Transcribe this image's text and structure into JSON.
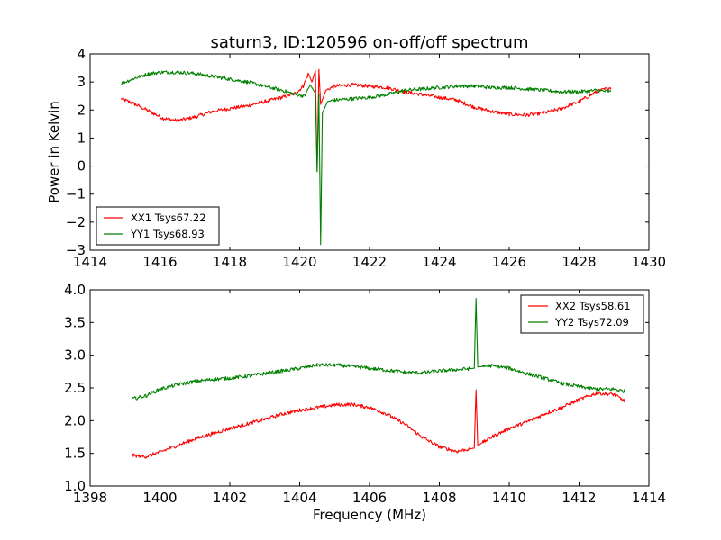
{
  "figure": {
    "title": "saturn3, ID:120596 on-off/off spectrum",
    "ylabel": "Power in Kelvin",
    "xlabel": "Frequency (MHz)"
  },
  "chart_data": [
    {
      "type": "line",
      "title": "saturn3, ID:120596 on-off/off spectrum",
      "xlabel": "",
      "ylabel": "Power in Kelvin",
      "xlim": [
        1414,
        1430
      ],
      "ylim": [
        -3,
        4
      ],
      "xticks": [
        "1414",
        "1416",
        "1418",
        "1420",
        "1422",
        "1424",
        "1426",
        "1428",
        "1430"
      ],
      "yticks": [
        "4",
        "3",
        "2",
        "1",
        "0",
        "−1",
        "−2",
        "−3"
      ],
      "legend_position": "lower-left",
      "grid": false,
      "series": [
        {
          "name": "XX1 Tsys67.22",
          "color": "#ff0000",
          "points": [
            [
              1414.9,
              2.4
            ],
            [
              1415.3,
              2.2
            ],
            [
              1415.7,
              1.95
            ],
            [
              1416.1,
              1.7
            ],
            [
              1416.5,
              1.62
            ],
            [
              1417.0,
              1.75
            ],
            [
              1417.5,
              1.95
            ],
            [
              1418.0,
              2.05
            ],
            [
              1418.5,
              2.15
            ],
            [
              1419.0,
              2.3
            ],
            [
              1419.5,
              2.45
            ],
            [
              1419.9,
              2.6
            ],
            [
              1420.1,
              2.85
            ],
            [
              1420.25,
              3.3
            ],
            [
              1420.35,
              3.0
            ],
            [
              1420.45,
              3.4
            ],
            [
              1420.5,
              -0.2
            ],
            [
              1420.55,
              3.45
            ],
            [
              1420.6,
              2.2
            ],
            [
              1420.75,
              2.7
            ],
            [
              1421.0,
              2.85
            ],
            [
              1421.5,
              2.9
            ],
            [
              1422.0,
              2.85
            ],
            [
              1422.5,
              2.8
            ],
            [
              1423.0,
              2.65
            ],
            [
              1423.5,
              2.55
            ],
            [
              1424.0,
              2.45
            ],
            [
              1424.5,
              2.35
            ],
            [
              1425.0,
              2.1
            ],
            [
              1425.5,
              1.95
            ],
            [
              1426.0,
              1.85
            ],
            [
              1426.5,
              1.82
            ],
            [
              1427.0,
              1.9
            ],
            [
              1427.5,
              2.05
            ],
            [
              1428.0,
              2.3
            ],
            [
              1428.5,
              2.65
            ],
            [
              1428.9,
              2.8
            ]
          ]
        },
        {
          "name": "YY1 Tsys68.93",
          "color": "#008000",
          "points": [
            [
              1414.9,
              2.95
            ],
            [
              1415.3,
              3.15
            ],
            [
              1415.7,
              3.3
            ],
            [
              1416.1,
              3.35
            ],
            [
              1416.5,
              3.35
            ],
            [
              1417.0,
              3.3
            ],
            [
              1417.5,
              3.2
            ],
            [
              1418.0,
              3.1
            ],
            [
              1418.5,
              3.0
            ],
            [
              1419.0,
              2.85
            ],
            [
              1419.5,
              2.7
            ],
            [
              1419.9,
              2.55
            ],
            [
              1420.15,
              2.5
            ],
            [
              1420.3,
              2.9
            ],
            [
              1420.45,
              2.6
            ],
            [
              1420.5,
              -0.2
            ],
            [
              1420.55,
              2.55
            ],
            [
              1420.6,
              -2.8
            ],
            [
              1420.65,
              1.9
            ],
            [
              1420.8,
              2.3
            ],
            [
              1421.0,
              2.35
            ],
            [
              1421.5,
              2.4
            ],
            [
              1422.0,
              2.45
            ],
            [
              1422.5,
              2.55
            ],
            [
              1423.0,
              2.7
            ],
            [
              1423.5,
              2.75
            ],
            [
              1424.0,
              2.8
            ],
            [
              1424.5,
              2.85
            ],
            [
              1425.0,
              2.85
            ],
            [
              1425.5,
              2.8
            ],
            [
              1426.0,
              2.8
            ],
            [
              1426.5,
              2.75
            ],
            [
              1427.0,
              2.7
            ],
            [
              1427.5,
              2.65
            ],
            [
              1428.0,
              2.65
            ],
            [
              1428.5,
              2.7
            ],
            [
              1428.9,
              2.65
            ]
          ]
        }
      ]
    },
    {
      "type": "line",
      "title": "",
      "xlabel": "Frequency (MHz)",
      "ylabel": "",
      "xlim": [
        1398,
        1414
      ],
      "ylim": [
        1.0,
        4.0
      ],
      "xticks": [
        "1398",
        "1400",
        "1402",
        "1404",
        "1406",
        "1408",
        "1410",
        "1412",
        "1414"
      ],
      "yticks": [
        "4.0",
        "3.5",
        "3.0",
        "2.5",
        "2.0",
        "1.5",
        "1.0"
      ],
      "legend_position": "upper-right",
      "grid": false,
      "series": [
        {
          "name": "XX2 Tsys58.61",
          "color": "#ff0000",
          "points": [
            [
              1399.2,
              1.47
            ],
            [
              1399.6,
              1.45
            ],
            [
              1400.0,
              1.52
            ],
            [
              1400.5,
              1.62
            ],
            [
              1401.0,
              1.72
            ],
            [
              1401.5,
              1.8
            ],
            [
              1402.0,
              1.88
            ],
            [
              1402.5,
              1.95
            ],
            [
              1403.0,
              2.02
            ],
            [
              1403.5,
              2.1
            ],
            [
              1404.0,
              2.16
            ],
            [
              1404.5,
              2.2
            ],
            [
              1405.0,
              2.24
            ],
            [
              1405.5,
              2.25
            ],
            [
              1406.0,
              2.2
            ],
            [
              1406.5,
              2.1
            ],
            [
              1407.0,
              1.95
            ],
            [
              1407.5,
              1.75
            ],
            [
              1408.0,
              1.6
            ],
            [
              1408.5,
              1.53
            ],
            [
              1409.0,
              1.58
            ],
            [
              1409.05,
              2.47
            ],
            [
              1409.1,
              1.62
            ],
            [
              1409.5,
              1.75
            ],
            [
              1410.0,
              1.88
            ],
            [
              1410.5,
              1.98
            ],
            [
              1411.0,
              2.1
            ],
            [
              1411.5,
              2.2
            ],
            [
              1412.0,
              2.32
            ],
            [
              1412.5,
              2.42
            ],
            [
              1413.0,
              2.4
            ],
            [
              1413.3,
              2.3
            ]
          ]
        },
        {
          "name": "YY2 Tsys72.09",
          "color": "#008000",
          "points": [
            [
              1399.2,
              2.33
            ],
            [
              1399.6,
              2.38
            ],
            [
              1400.0,
              2.48
            ],
            [
              1400.5,
              2.55
            ],
            [
              1401.0,
              2.6
            ],
            [
              1401.5,
              2.63
            ],
            [
              1402.0,
              2.65
            ],
            [
              1402.5,
              2.68
            ],
            [
              1403.0,
              2.72
            ],
            [
              1403.5,
              2.76
            ],
            [
              1404.0,
              2.8
            ],
            [
              1404.5,
              2.85
            ],
            [
              1405.0,
              2.85
            ],
            [
              1405.5,
              2.83
            ],
            [
              1406.0,
              2.8
            ],
            [
              1406.5,
              2.77
            ],
            [
              1407.0,
              2.74
            ],
            [
              1407.5,
              2.73
            ],
            [
              1408.0,
              2.76
            ],
            [
              1408.5,
              2.78
            ],
            [
              1409.0,
              2.8
            ],
            [
              1409.05,
              3.87
            ],
            [
              1409.1,
              2.82
            ],
            [
              1409.5,
              2.84
            ],
            [
              1410.0,
              2.8
            ],
            [
              1410.5,
              2.72
            ],
            [
              1411.0,
              2.65
            ],
            [
              1411.5,
              2.57
            ],
            [
              1412.0,
              2.52
            ],
            [
              1412.5,
              2.48
            ],
            [
              1413.0,
              2.48
            ],
            [
              1413.3,
              2.45
            ]
          ]
        }
      ]
    }
  ]
}
